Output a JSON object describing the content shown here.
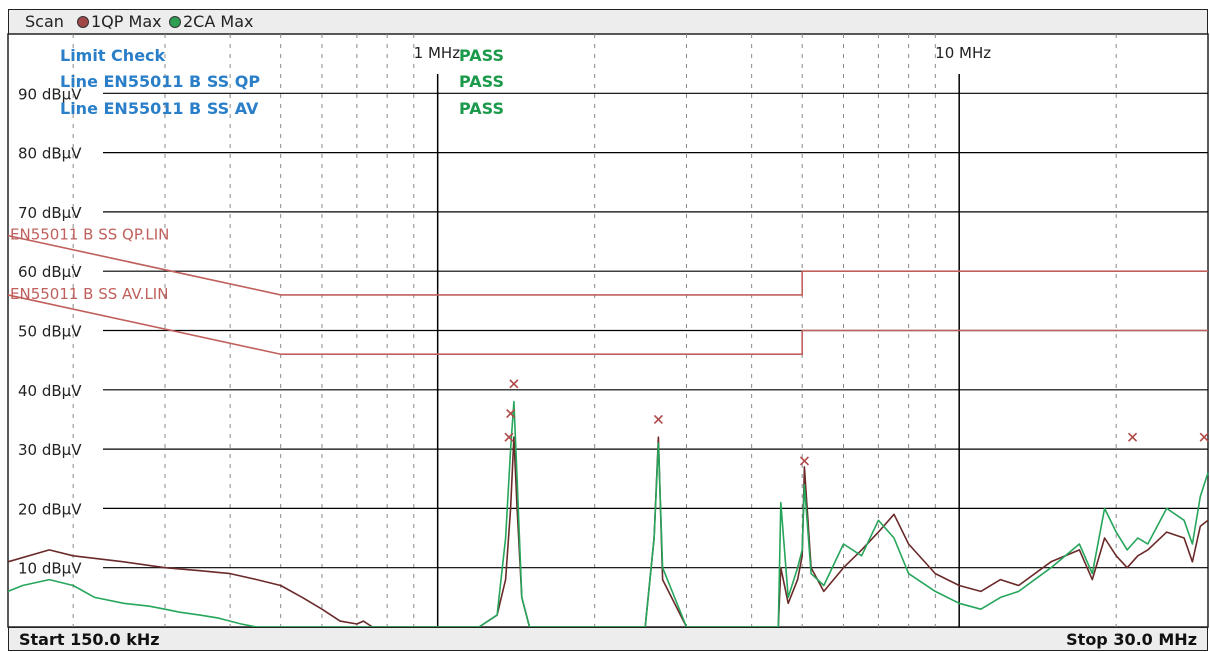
{
  "header": {
    "scan_label": "Scan",
    "legend": [
      {
        "label": "1QP Max",
        "color": "#a04848"
      },
      {
        "label": "2CA Max",
        "color": "#2e9e52"
      }
    ]
  },
  "footer": {
    "start_label": "Start 150.0 kHz",
    "stop_label": "Stop 30.0 MHz"
  },
  "limit_check": {
    "title": "Limit Check",
    "title_color": "#2a7fc8",
    "pass_color": "#1a9a4a",
    "rows": [
      {
        "label": "Line EN55011 B SS QP",
        "result": "PASS"
      },
      {
        "label": "Line EN55011 B SS AV",
        "result": "PASS"
      }
    ],
    "header_result": "PASS"
  },
  "colors": {
    "grid": "#000000",
    "limit": "#c0605c",
    "qp": "#6b2a2a",
    "ca": "#26a65b",
    "marker": "#b04848"
  },
  "chart_data": {
    "type": "line",
    "title": "",
    "xscale": "log",
    "xlim": [
      0.15,
      30
    ],
    "ylim": [
      0,
      100
    ],
    "xunit": "MHz",
    "yunit": "dBµV",
    "grid": true,
    "x_tick_labels": [
      {
        "x": 1,
        "label": "1 MHz"
      },
      {
        "x": 10,
        "label": "10 MHz"
      }
    ],
    "y_tick_labels": [
      {
        "y": 90,
        "label": "90 dBµV"
      },
      {
        "y": 80,
        "label": "80 dBµV"
      },
      {
        "y": 70,
        "label": "70 dBµV"
      },
      {
        "y": 60,
        "label": "60 dBµV"
      },
      {
        "y": 50,
        "label": "50 dBµV"
      },
      {
        "y": 40,
        "label": "40 dBµV"
      },
      {
        "y": 30,
        "label": "30 dBµV"
      },
      {
        "y": 20,
        "label": "20 dBµV"
      },
      {
        "y": 10,
        "label": "10 dBµV"
      }
    ],
    "limit_lines": [
      {
        "name": "EN55011 B SS QP.LIN",
        "x": [
          0.15,
          0.5,
          5,
          5,
          30
        ],
        "y": [
          66,
          56,
          56,
          60,
          60
        ]
      },
      {
        "name": "EN55011 B SS AV.LIN",
        "x": [
          0.15,
          0.5,
          5,
          5,
          30
        ],
        "y": [
          56,
          46,
          46,
          50,
          50
        ]
      }
    ],
    "series": [
      {
        "name": "1QP Max",
        "x": [
          0.15,
          0.18,
          0.2,
          0.25,
          0.3,
          0.35,
          0.4,
          0.45,
          0.5,
          0.55,
          0.6,
          0.65,
          0.7,
          0.72,
          0.75,
          0.8,
          0.9,
          1.0,
          1.2,
          1.3,
          1.35,
          1.38,
          1.4,
          1.42,
          1.45,
          1.5,
          1.7,
          2.0,
          2.5,
          2.6,
          2.65,
          2.7,
          3.0,
          4.0,
          4.5,
          4.55,
          4.7,
          4.9,
          5.0,
          5.05,
          5.2,
          5.5,
          6.0,
          6.5,
          7.0,
          7.5,
          8.0,
          9.0,
          10.0,
          11.0,
          12.0,
          13.0,
          15.0,
          17.0,
          18.0,
          19.0,
          20.0,
          21.0,
          22.0,
          23.0,
          25.0,
          27.0,
          28.0,
          29.0,
          30.0
        ],
        "y": [
          11,
          13,
          12,
          11,
          10,
          9.5,
          9,
          8,
          7,
          5,
          3,
          1,
          0.5,
          1,
          0,
          0,
          0,
          0,
          0,
          2,
          8,
          20,
          32,
          20,
          5,
          0,
          0,
          0,
          0,
          15,
          32,
          8,
          0,
          0,
          0,
          10,
          4,
          8,
          12,
          27,
          10,
          6,
          10,
          13,
          16,
          19,
          14,
          9,
          7,
          6,
          8,
          7,
          11,
          13,
          8,
          15,
          12,
          10,
          12,
          13,
          16,
          15,
          11,
          17,
          18
        ]
      },
      {
        "name": "2CA Max",
        "x": [
          0.15,
          0.16,
          0.18,
          0.2,
          0.22,
          0.25,
          0.28,
          0.3,
          0.32,
          0.35,
          0.38,
          0.4,
          0.42,
          0.45,
          0.5,
          0.55,
          0.6,
          0.8,
          1.0,
          1.2,
          1.3,
          1.35,
          1.38,
          1.4,
          1.42,
          1.45,
          1.5,
          1.8,
          2.0,
          2.5,
          2.6,
          2.65,
          2.7,
          3.0,
          4.0,
          4.3,
          4.5,
          4.55,
          4.7,
          4.9,
          5.0,
          5.05,
          5.2,
          5.5,
          6.0,
          6.5,
          7.0,
          7.5,
          8.0,
          9.0,
          10.0,
          11.0,
          12.0,
          13.0,
          15.0,
          17.0,
          18.0,
          19.0,
          20.0,
          21.0,
          22.0,
          23.0,
          25.0,
          27.0,
          28.0,
          29.0,
          30.0
        ],
        "y": [
          6,
          7,
          8,
          7,
          5,
          4,
          3.5,
          3,
          2.5,
          2,
          1.5,
          1,
          0.5,
          0,
          0,
          0,
          0,
          0,
          0,
          0,
          2,
          15,
          30,
          38,
          25,
          5,
          0,
          0,
          0,
          0,
          15,
          31,
          10,
          0,
          0,
          0,
          0,
          21,
          5,
          10,
          13,
          24,
          9,
          7,
          14,
          12,
          18,
          15,
          9,
          6,
          4,
          3,
          5,
          6,
          10,
          14,
          9,
          20,
          16,
          13,
          15,
          14,
          20,
          18,
          14,
          22,
          26
        ]
      }
    ],
    "peaks": [
      {
        "x": 1.4,
        "y": 41
      },
      {
        "x": 1.38,
        "y": 36
      },
      {
        "x": 1.37,
        "y": 32
      },
      {
        "x": 2.65,
        "y": 35
      },
      {
        "x": 5.05,
        "y": 28
      },
      {
        "x": 21.5,
        "y": 32
      },
      {
        "x": 29.5,
        "y": 32
      }
    ]
  }
}
